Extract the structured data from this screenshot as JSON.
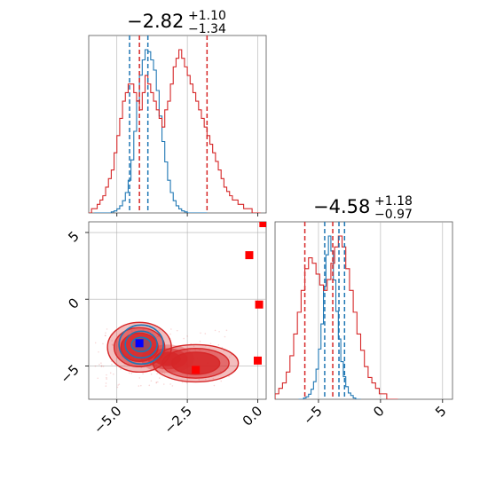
{
  "chart_data": {
    "type": "corner",
    "colors": {
      "posterior_a": "#1f77b4",
      "posterior_b": "#d62728",
      "marker_red": "#ff0000",
      "marker_blue": "#0000ff",
      "grid": "#b0b0b0"
    },
    "grid": true,
    "panels": [
      {
        "id": "hist-param-1",
        "type": "histogram",
        "title": {
          "value": "−2.82",
          "plus": "+1.10",
          "minus": "−1.34"
        },
        "xlim": [
          -6.0,
          0.3
        ],
        "series": [
          {
            "name": "",
            "color": "#1f77b4",
            "bin_width": 0.1,
            "x_start": -5.8,
            "counts": [
              0,
              0,
              0,
              0,
              0,
              0,
              1,
              2,
              4,
              7,
              12,
              20,
              32,
              52,
              80,
              110,
              135,
              150,
              160,
              158,
              150,
              140,
              120,
              95,
              70,
              50,
              32,
              20,
              12,
              7,
              4,
              2,
              1,
              0,
              0,
              0,
              0,
              0,
              0,
              0
            ]
          },
          {
            "name": "",
            "color": "#d62728",
            "bin_width": 0.1,
            "x_start": -6.0,
            "counts": [
              0,
              1,
              1,
              2,
              3,
              4,
              6,
              8,
              10,
              14,
              18,
              22,
              26,
              28,
              30,
              30,
              28,
              26,
              24,
              28,
              32,
              30,
              28,
              26,
              24,
              22,
              20,
              24,
              26,
              30,
              34,
              36,
              38,
              36,
              34,
              32,
              30,
              28,
              26,
              24,
              22,
              20,
              18,
              16,
              14,
              12,
              10,
              8,
              6,
              5,
              4,
              3,
              3,
              2,
              2,
              1,
              1,
              1,
              0,
              0,
              0
            ]
          }
        ],
        "vlines": [
          {
            "x": -4.55,
            "color": "#1f77b4"
          },
          {
            "x": -4.2,
            "color": "#d62728"
          },
          {
            "x": -3.9,
            "color": "#1f77b4"
          },
          {
            "x": -1.8,
            "color": "#d62728"
          }
        ],
        "xticks": [
          -5.0,
          -2.5,
          0.0
        ]
      },
      {
        "id": "hist-param-2",
        "type": "histogram",
        "title": {
          "value": "−4.58",
          "plus": "+1.18",
          "minus": "−0.97"
        },
        "xlim": [
          -8.5,
          5.8
        ],
        "xticks": [
          -5,
          0,
          5
        ],
        "xtick_labels": [
          "−5",
          "0",
          "5"
        ],
        "series": [
          {
            "name": "",
            "color": "#1f77b4",
            "bin_width": 0.2,
            "x_start": -6.6,
            "counts": [
              0,
              0,
              1,
              2,
              4,
              8,
              14,
              24,
              40,
              60,
              90,
              115,
              130,
              118,
              95,
              70,
              48,
              30,
              18,
              10,
              5,
              3,
              1,
              0,
              0
            ]
          },
          {
            "name": "",
            "color": "#d62728",
            "bin_width": 0.3,
            "x_start": -8.5,
            "counts": [
              1,
              2,
              3,
              5,
              8,
              12,
              16,
              20,
              24,
              26,
              25,
              23,
              21,
              20,
              22,
              25,
              28,
              30,
              28,
              24,
              20,
              16,
              12,
              9,
              6,
              4,
              3,
              2,
              1,
              1,
              0,
              0,
              0
            ]
          }
        ],
        "vlines": [
          {
            "x": -6.1,
            "color": "#d62728"
          },
          {
            "x": -4.5,
            "color": "#1f77b4"
          },
          {
            "x": -3.85,
            "color": "#d62728"
          },
          {
            "x": -3.35,
            "color": "#1f77b4"
          },
          {
            "x": -2.9,
            "color": "#1f77b4"
          }
        ]
      },
      {
        "id": "joint-param-1-2",
        "type": "2d-density",
        "xlim": [
          -6.0,
          0.3
        ],
        "ylim": [
          -7.5,
          5.8
        ],
        "xticks": [
          -5.0,
          -2.5,
          0.0
        ],
        "xtick_labels": [
          "−5.0",
          "−2.5",
          "0.0"
        ],
        "yticks": [
          -5,
          0,
          5
        ],
        "ytick_labels": [
          "−5",
          "0",
          "5"
        ],
        "density_b": {
          "color": "#d62728",
          "levels": 3,
          "centers": [
            [
              -4.2,
              -3.6
            ],
            [
              -2.2,
              -4.8
            ]
          ]
        },
        "density_a": {
          "color": "#1f77b4",
          "levels": 3,
          "center": [
            -4.2,
            -3.4
          ]
        },
        "markers": [
          {
            "x": 0.2,
            "y": 5.7,
            "color": "#ff0000"
          },
          {
            "x": -0.3,
            "y": 3.3,
            "color": "#ff0000"
          },
          {
            "x": 0.05,
            "y": -0.4,
            "color": "#ff0000"
          },
          {
            "x": 0.0,
            "y": -4.6,
            "color": "#ff0000"
          },
          {
            "x": -2.2,
            "y": -5.3,
            "color": "#ff0000"
          },
          {
            "x": -4.2,
            "y": -3.3,
            "color": "#0000ff"
          }
        ]
      }
    ]
  }
}
